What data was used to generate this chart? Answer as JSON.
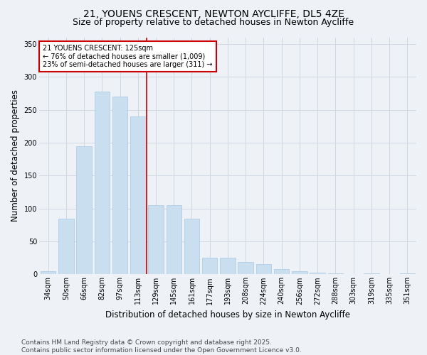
{
  "title_line1": "21, YOUENS CRESCENT, NEWTON AYCLIFFE, DL5 4ZE",
  "title_line2": "Size of property relative to detached houses in Newton Aycliffe",
  "xlabel": "Distribution of detached houses by size in Newton Aycliffe",
  "ylabel": "Number of detached properties",
  "categories": [
    "34sqm",
    "50sqm",
    "66sqm",
    "82sqm",
    "97sqm",
    "113sqm",
    "129sqm",
    "145sqm",
    "161sqm",
    "177sqm",
    "193sqm",
    "208sqm",
    "224sqm",
    "240sqm",
    "256sqm",
    "272sqm",
    "288sqm",
    "303sqm",
    "319sqm",
    "335sqm",
    "351sqm"
  ],
  "values": [
    5,
    85,
    195,
    278,
    270,
    240,
    105,
    105,
    85,
    25,
    25,
    19,
    15,
    8,
    5,
    3,
    1,
    0,
    1,
    0,
    1
  ],
  "bar_color": "#c9dff0",
  "bar_edge_color": "#a8c8e8",
  "vline_x_index": 5.5,
  "vline_color": "#cc0000",
  "annotation_title": "21 YOUENS CRESCENT: 125sqm",
  "annotation_line1": "← 76% of detached houses are smaller (1,009)",
  "annotation_line2": "23% of semi-detached houses are larger (311) →",
  "annotation_box_color": "#ffffff",
  "annotation_box_edge": "#cc0000",
  "ylim": [
    0,
    360
  ],
  "yticks": [
    0,
    50,
    100,
    150,
    200,
    250,
    300,
    350
  ],
  "footer_line1": "Contains HM Land Registry data © Crown copyright and database right 2025.",
  "footer_line2": "Contains public sector information licensed under the Open Government Licence v3.0.",
  "bg_color": "#eef2f7",
  "grid_color": "#d0d8e4",
  "title_fontsize": 10,
  "subtitle_fontsize": 9,
  "tick_fontsize": 7,
  "label_fontsize": 8.5,
  "footer_fontsize": 6.5,
  "annotation_fontsize": 7
}
